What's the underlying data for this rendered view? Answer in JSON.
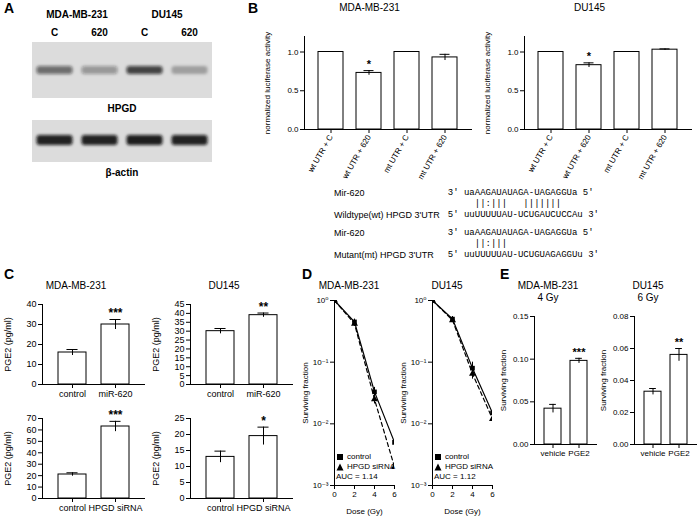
{
  "panels": [
    "A",
    "B",
    "C",
    "D",
    "E"
  ],
  "blot": {
    "cell_lines": [
      "MDA-MB-231",
      "DU145"
    ],
    "lanes": [
      "C",
      "620",
      "C",
      "620"
    ],
    "bands": [
      "HPGD",
      "β-actin"
    ]
  },
  "alignment": [
    {
      "mirna_label": "Mir-620",
      "mirna": "3' uaAAGAUAUAGA-UAGAGGUa 5'",
      "match": "     ||:|||   |||||||",
      "utr_label": "Wildtype(wt) HPGD 3'UTR",
      "utr": "5' uuUUUUUAU-UCUGAUCUCCAu 3'"
    },
    {
      "mirna_label": "Mir-620",
      "mirna": "3' uaAAGAUAUAGA-UAGAGGUa 5'",
      "match": "     ||:|||",
      "utr_label": "Mutant(mt) HPGD 3'UTR",
      "utr": "5' uuUUUUUAU-UCUGUAGAGGUu 3'"
    }
  ],
  "chart_data": [
    {
      "type": "bar",
      "title": "MDA-MB-231",
      "categories": [
        "wt UTR + C",
        "wt UTR + 620",
        "mt UTR + C",
        "mt UTR + 620"
      ],
      "values": [
        1.0,
        0.73,
        1.0,
        0.93
      ],
      "errors": [
        0,
        0.03,
        0,
        0.04
      ],
      "color": "#ffffff",
      "ylim": [
        0,
        1.2
      ],
      "yticks": [
        {
          "value": 0,
          "label": "0.0"
        },
        0.5,
        {
          "value": 1,
          "label": "1.0"
        }
      ],
      "ylabel": "normalized luciferase activity",
      "annotations": [
        {
          "category": "wt UTR + 620",
          "text": "*"
        }
      ]
    },
    {
      "type": "bar",
      "title": "DU145",
      "categories": [
        "wt UTR + C",
        "wt UTR + 620",
        "mt UTR + C",
        "mt UTR + 620"
      ],
      "values": [
        1.0,
        0.83,
        1.0,
        1.03
      ],
      "errors": [
        0,
        0.03,
        0,
        0.01
      ],
      "color": "#ffffff",
      "ylim": [
        0,
        1.2
      ],
      "yticks": [
        {
          "value": 0,
          "label": "0.0"
        },
        0.5,
        {
          "value": 1,
          "label": "1.0"
        }
      ],
      "ylabel": "normalized luciferase activity",
      "annotations": [
        {
          "category": "wt UTR + 620",
          "text": "*"
        }
      ]
    },
    {
      "type": "bar",
      "title": "MDA-MB-231",
      "categories": [
        "control",
        "miR-620"
      ],
      "values": [
        16,
        30
      ],
      "errors": [
        1.5,
        2.5
      ],
      "color": "#ffffff",
      "ylim": [
        0,
        40
      ],
      "yticks": [
        0,
        10,
        20,
        30,
        40
      ],
      "ylabel": "PGE2 (pg/ml)",
      "annotations": [
        {
          "category": "miR-620",
          "text": "***"
        }
      ]
    },
    {
      "type": "bar",
      "title": "DU145",
      "categories": [
        "control",
        "miR-620"
      ],
      "values": [
        30,
        39
      ],
      "errors": [
        1.5,
        1.2
      ],
      "color": "#ffffff",
      "ylim": [
        0,
        45
      ],
      "yticks": [
        0,
        5,
        10,
        15,
        20,
        25,
        30,
        35,
        40,
        45
      ],
      "ylabel": "PGE2 (pg/ml)",
      "annotations": [
        {
          "category": "miR-620",
          "text": "**"
        }
      ]
    },
    {
      "type": "bar",
      "categories": [
        "control",
        "HPGD siRNA"
      ],
      "values": [
        21,
        63
      ],
      "errors": [
        1.5,
        4.5
      ],
      "color": "#ffffff",
      "ylim": [
        0,
        70
      ],
      "yticks": [
        0,
        10,
        20,
        30,
        40,
        50,
        60,
        70
      ],
      "ylabel": "PGE2 (pg/ml)",
      "annotations": [
        {
          "category": "HPGD siRNA",
          "text": "***"
        }
      ]
    },
    {
      "type": "bar",
      "categories": [
        "control",
        "HPGD siRNA"
      ],
      "values": [
        13,
        19.5
      ],
      "errors": [
        1.8,
        2.8
      ],
      "color": "#ffffff",
      "ylim": [
        0,
        25
      ],
      "yticks": [
        0,
        5,
        10,
        15,
        20,
        25
      ],
      "ylabel": "PGE2 (pg/ml)",
      "annotations": [
        {
          "category": "HPGD siRNA",
          "text": "*"
        }
      ]
    },
    {
      "type": "line",
      "title": "MDA-MB-231",
      "x": [
        0,
        2,
        4,
        6
      ],
      "series": [
        {
          "name": "control",
          "color": "#000000",
          "marker": "square",
          "line_style": "solid",
          "values": [
            1,
            0.45,
            0.033,
            0.005
          ],
          "errors": [
            0,
            0.05,
            0.006,
            0.0015
          ]
        },
        {
          "name": "HPGD siRNA",
          "color": "#000000",
          "marker": "triangle",
          "line_style": "dashed",
          "values": [
            1,
            0.42,
            0.025,
            0.002
          ],
          "errors": [
            0,
            0.04,
            0.004,
            0.0006
          ]
        }
      ],
      "log": "y",
      "xlim": [
        0,
        6
      ],
      "ylim": [
        0.001,
        1
      ],
      "xticks": [
        0,
        2,
        4,
        6
      ],
      "yticks": [
        {
          "value": 1,
          "label": "10⁰"
        },
        {
          "value": 0.1,
          "label": "10⁻¹"
        },
        {
          "value": 0.01,
          "label": "10⁻²"
        },
        {
          "value": 0.001,
          "label": "10⁻³"
        }
      ],
      "xlabel": "Dose (Gy)",
      "ylabel": "Surviving fraction",
      "legend": "bottom-left",
      "annotations": [
        {
          "text": "AUC = 1.14"
        }
      ]
    },
    {
      "type": "line",
      "title": "DU145",
      "x": [
        0,
        2,
        4,
        6
      ],
      "series": [
        {
          "name": "control",
          "color": "#000000",
          "marker": "square",
          "line_style": "solid",
          "values": [
            1,
            0.5,
            0.08,
            0.015
          ],
          "errors": [
            0,
            0.05,
            0.02,
            0.006
          ]
        },
        {
          "name": "HPGD siRNA",
          "color": "#000000",
          "marker": "triangle",
          "line_style": "dashed",
          "values": [
            1,
            0.48,
            0.065,
            0.012
          ],
          "errors": [
            0,
            0.04,
            0.012,
            0.004
          ]
        }
      ],
      "log": "y",
      "xlim": [
        0,
        6
      ],
      "ylim": [
        0.001,
        1
      ],
      "xticks": [
        0,
        2,
        4,
        6
      ],
      "yticks": [
        {
          "value": 1,
          "label": "10⁰"
        },
        {
          "value": 0.1,
          "label": "10⁻¹"
        },
        {
          "value": 0.01,
          "label": "10⁻²"
        },
        {
          "value": 0.001,
          "label": "10⁻³"
        }
      ],
      "xlabel": "Dose (Gy)",
      "ylabel": "Surviving fraction",
      "legend": "bottom-left",
      "annotations": [
        {
          "text": "AUC = 1.12"
        }
      ]
    },
    {
      "type": "bar",
      "title": "MDA-MB-231",
      "subtitle": "4 Gy",
      "categories": [
        "vehicle",
        "PGE2"
      ],
      "values": [
        0.042,
        0.098
      ],
      "errors": [
        0.005,
        0.003
      ],
      "color": "#ffffff",
      "ylim": [
        0,
        0.15
      ],
      "yticks": [
        {
          "value": 0,
          "label": "0.00"
        },
        0.05,
        {
          "value": 0.1,
          "label": "0.10"
        },
        0.15
      ],
      "ylabel": "Surviving fraction",
      "annotations": [
        {
          "category": "PGE2",
          "text": "***"
        }
      ]
    },
    {
      "type": "bar",
      "title": "DU145",
      "subtitle": "6 Gy",
      "categories": [
        "vehicle",
        "PGE2"
      ],
      "values": [
        0.033,
        0.056
      ],
      "errors": [
        0.002,
        0.004
      ],
      "color": "#ffffff",
      "ylim": [
        0,
        0.08
      ],
      "yticks": [
        {
          "value": 0,
          "label": "0.00"
        },
        0.02,
        0.04,
        0.06,
        0.08
      ],
      "ylabel": "Surviving fraction",
      "annotations": [
        {
          "category": "PGE2",
          "text": "**"
        }
      ]
    }
  ]
}
